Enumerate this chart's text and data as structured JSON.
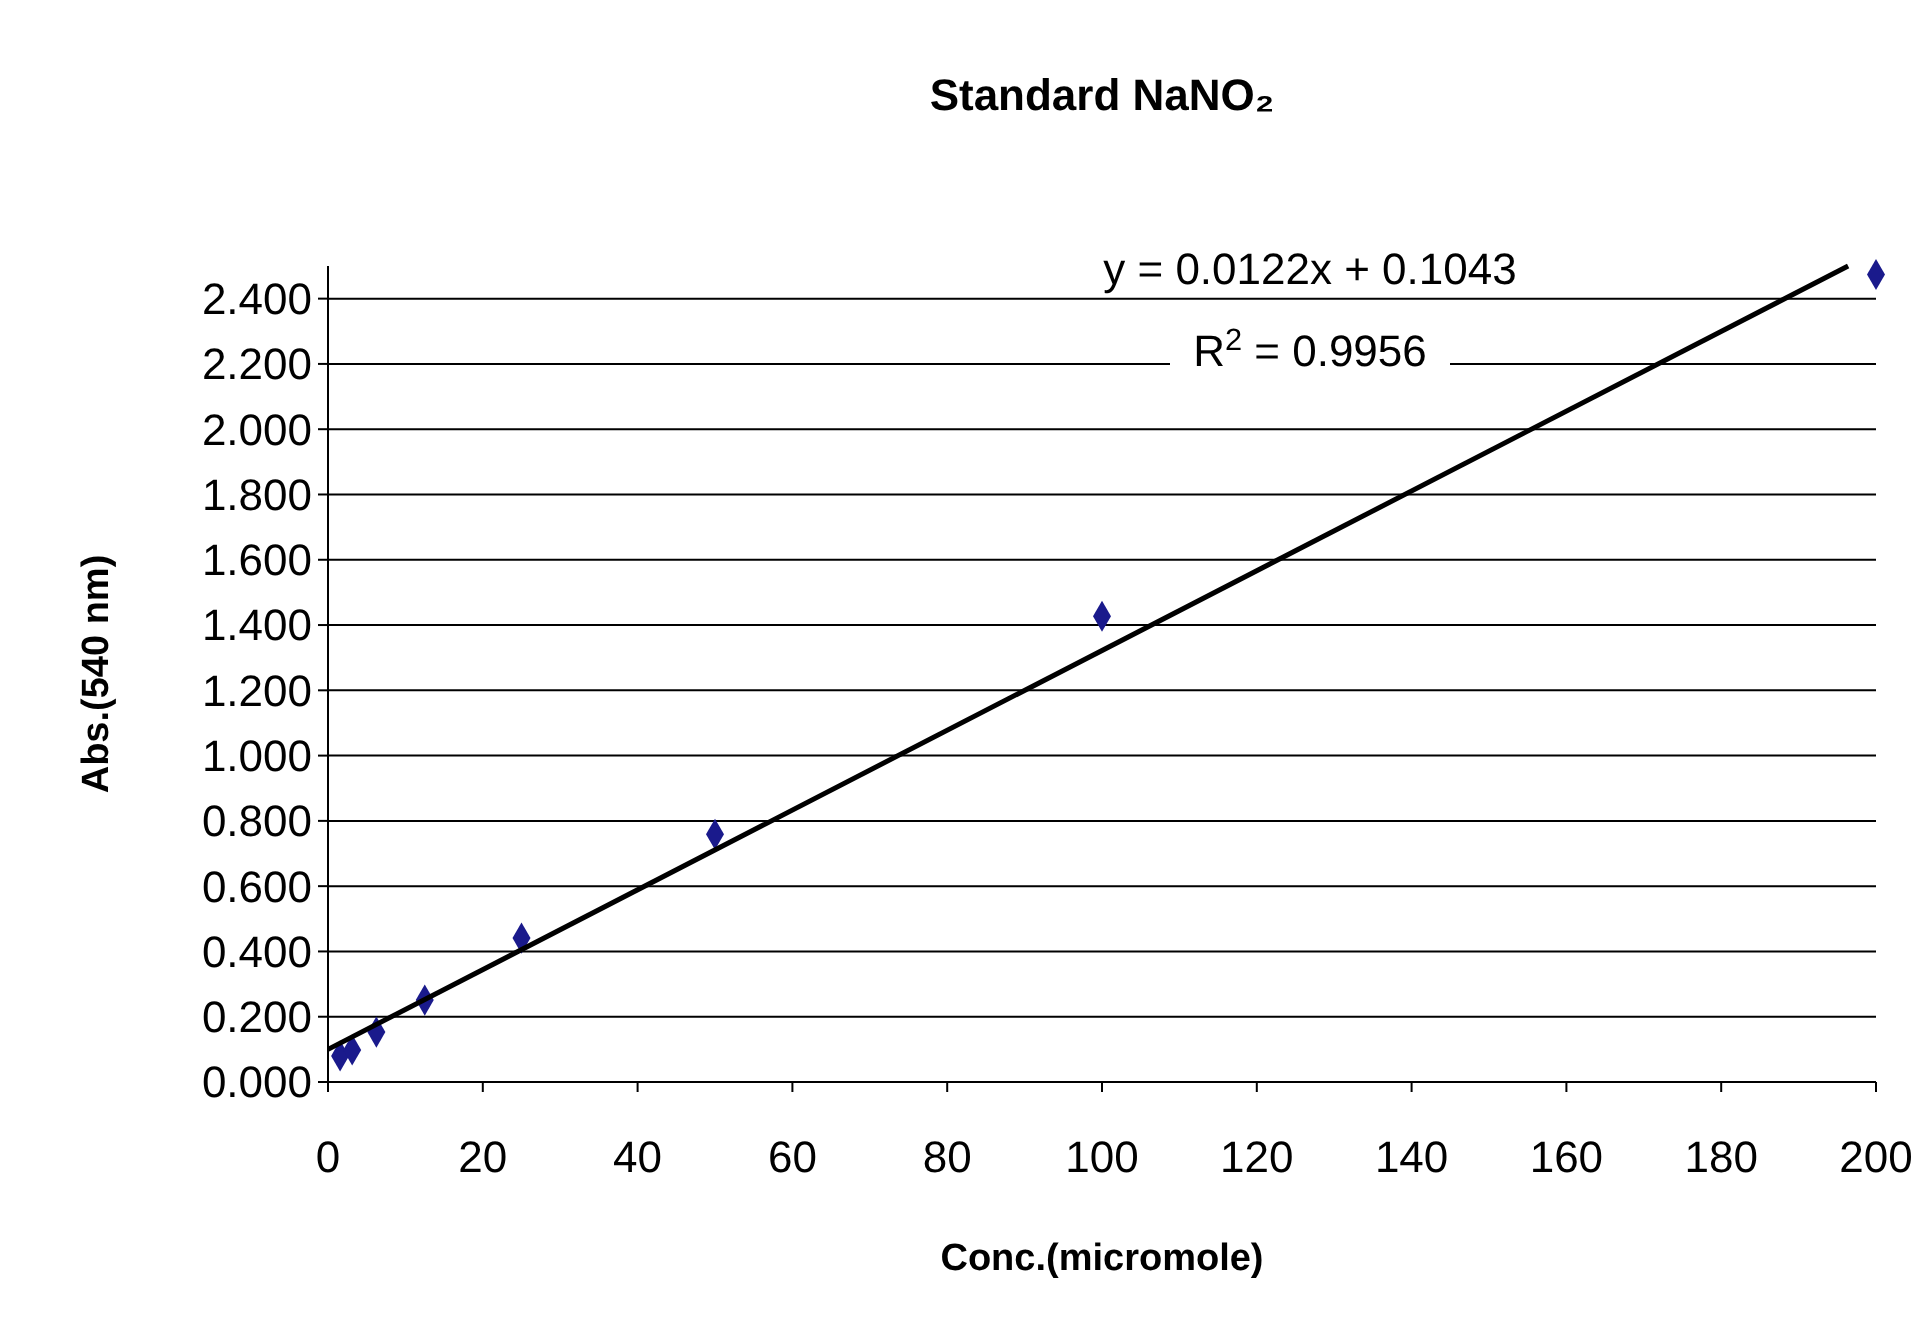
{
  "chart_data": {
    "type": "scatter",
    "title": "Standard NaNO₂",
    "xlabel": "Conc.(micromole)",
    "ylabel": "Abs.(540 nm)",
    "annotations": [
      "y = 0.0122x + 0.1043",
      "R$^{2}$ = 0.9956"
    ],
    "xlim": [
      0,
      200
    ],
    "xticks": [
      0,
      20,
      40,
      60,
      80,
      100,
      120,
      140,
      160,
      180,
      200
    ],
    "ylim": [
      0,
      2.5
    ],
    "yticks": [
      {
        "value": 0,
        "label": "0.000"
      },
      {
        "value": 0.2,
        "label": "0.200"
      },
      {
        "value": 0.4,
        "label": "0.400"
      },
      {
        "value": 0.6,
        "label": "0.600"
      },
      {
        "value": 0.8,
        "label": "0.800"
      },
      {
        "value": 1,
        "label": "1.000"
      },
      {
        "value": 1.2,
        "label": "1.200"
      },
      {
        "value": 1.4,
        "label": "1.400"
      },
      {
        "value": 1.6,
        "label": "1.600"
      },
      {
        "value": 1.8,
        "label": "1.800"
      },
      {
        "value": 2,
        "label": "2.000"
      },
      {
        "value": 2.2,
        "label": "2.200"
      },
      {
        "value": 2.4,
        "label": "2.400"
      }
    ],
    "grid": "y",
    "series": [
      {
        "color": "#1a1a8c",
        "marker": "diamond",
        "x": [
          1.5625,
          3.125,
          6.25,
          12.5,
          25,
          50,
          100,
          200
        ],
        "values": [
          0.08,
          0.098,
          0.153,
          0.251,
          0.441,
          0.759,
          1.427,
          2.474
        ]
      },
      {
        "type": "line",
        "color": "#000000",
        "marker": "none",
        "line_style": "solid",
        "x": [
          0,
          196.4
        ],
        "values": [
          0.1,
          2.5
        ]
      }
    ]
  }
}
